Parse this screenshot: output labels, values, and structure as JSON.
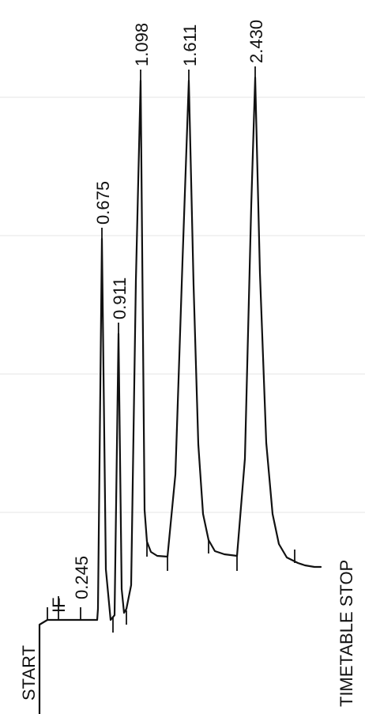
{
  "chart_data": {
    "type": "line",
    "title": "",
    "xlabel": "",
    "ylabel": "",
    "grid": true,
    "start_label": "START",
    "stop_label": "TIMETABLE STOP",
    "event_label": "IF",
    "peaks": [
      {
        "retention_time": "0.245"
      },
      {
        "retention_time": "0.675"
      },
      {
        "retention_time": "0.911"
      },
      {
        "retention_time": "1.098"
      },
      {
        "retention_time": "1.611"
      },
      {
        "retention_time": "2.430"
      }
    ]
  }
}
